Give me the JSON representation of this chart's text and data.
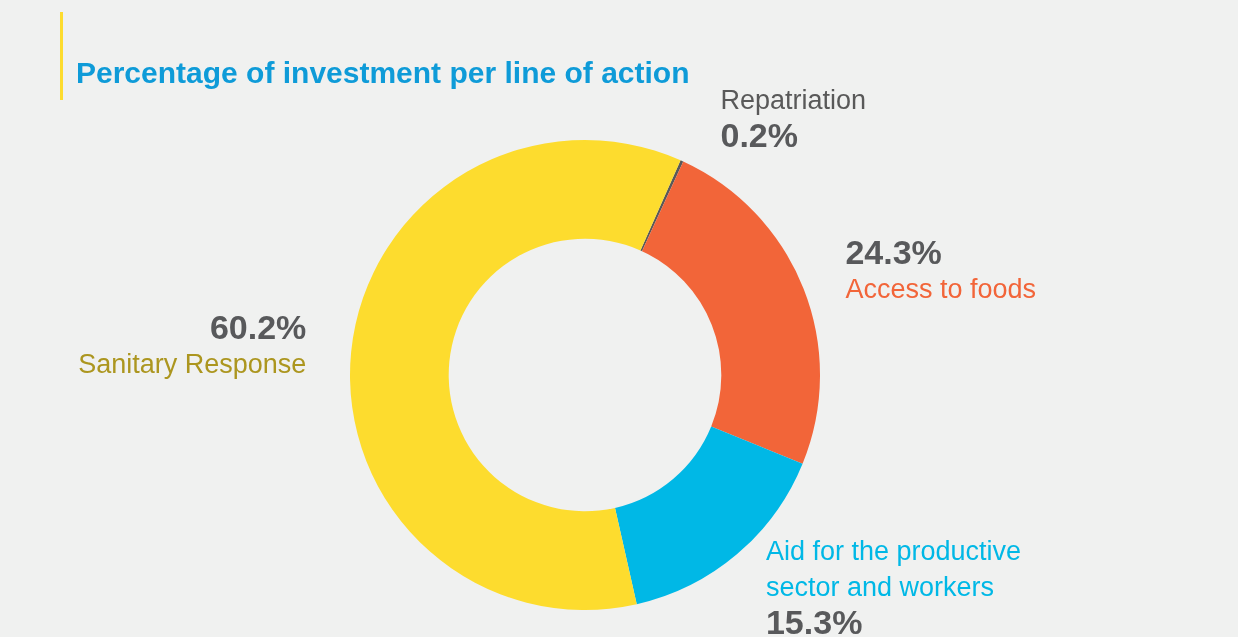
{
  "chart_data": {
    "type": "donut",
    "title": "Percentage of investment per line of action",
    "categories": [
      "Repatriation",
      "Access to foods",
      "Aid for the productive sector and workers",
      "Sanitary Response"
    ],
    "values": [
      0.2,
      24.3,
      15.3,
      60.2
    ],
    "colors": [
      "#595959",
      "#f26539",
      "#00b8e6",
      "#fddc2e"
    ],
    "value_labels": [
      "0.2%",
      "24.3%",
      "15.3%",
      "60.2%"
    ],
    "legend": false
  }
}
